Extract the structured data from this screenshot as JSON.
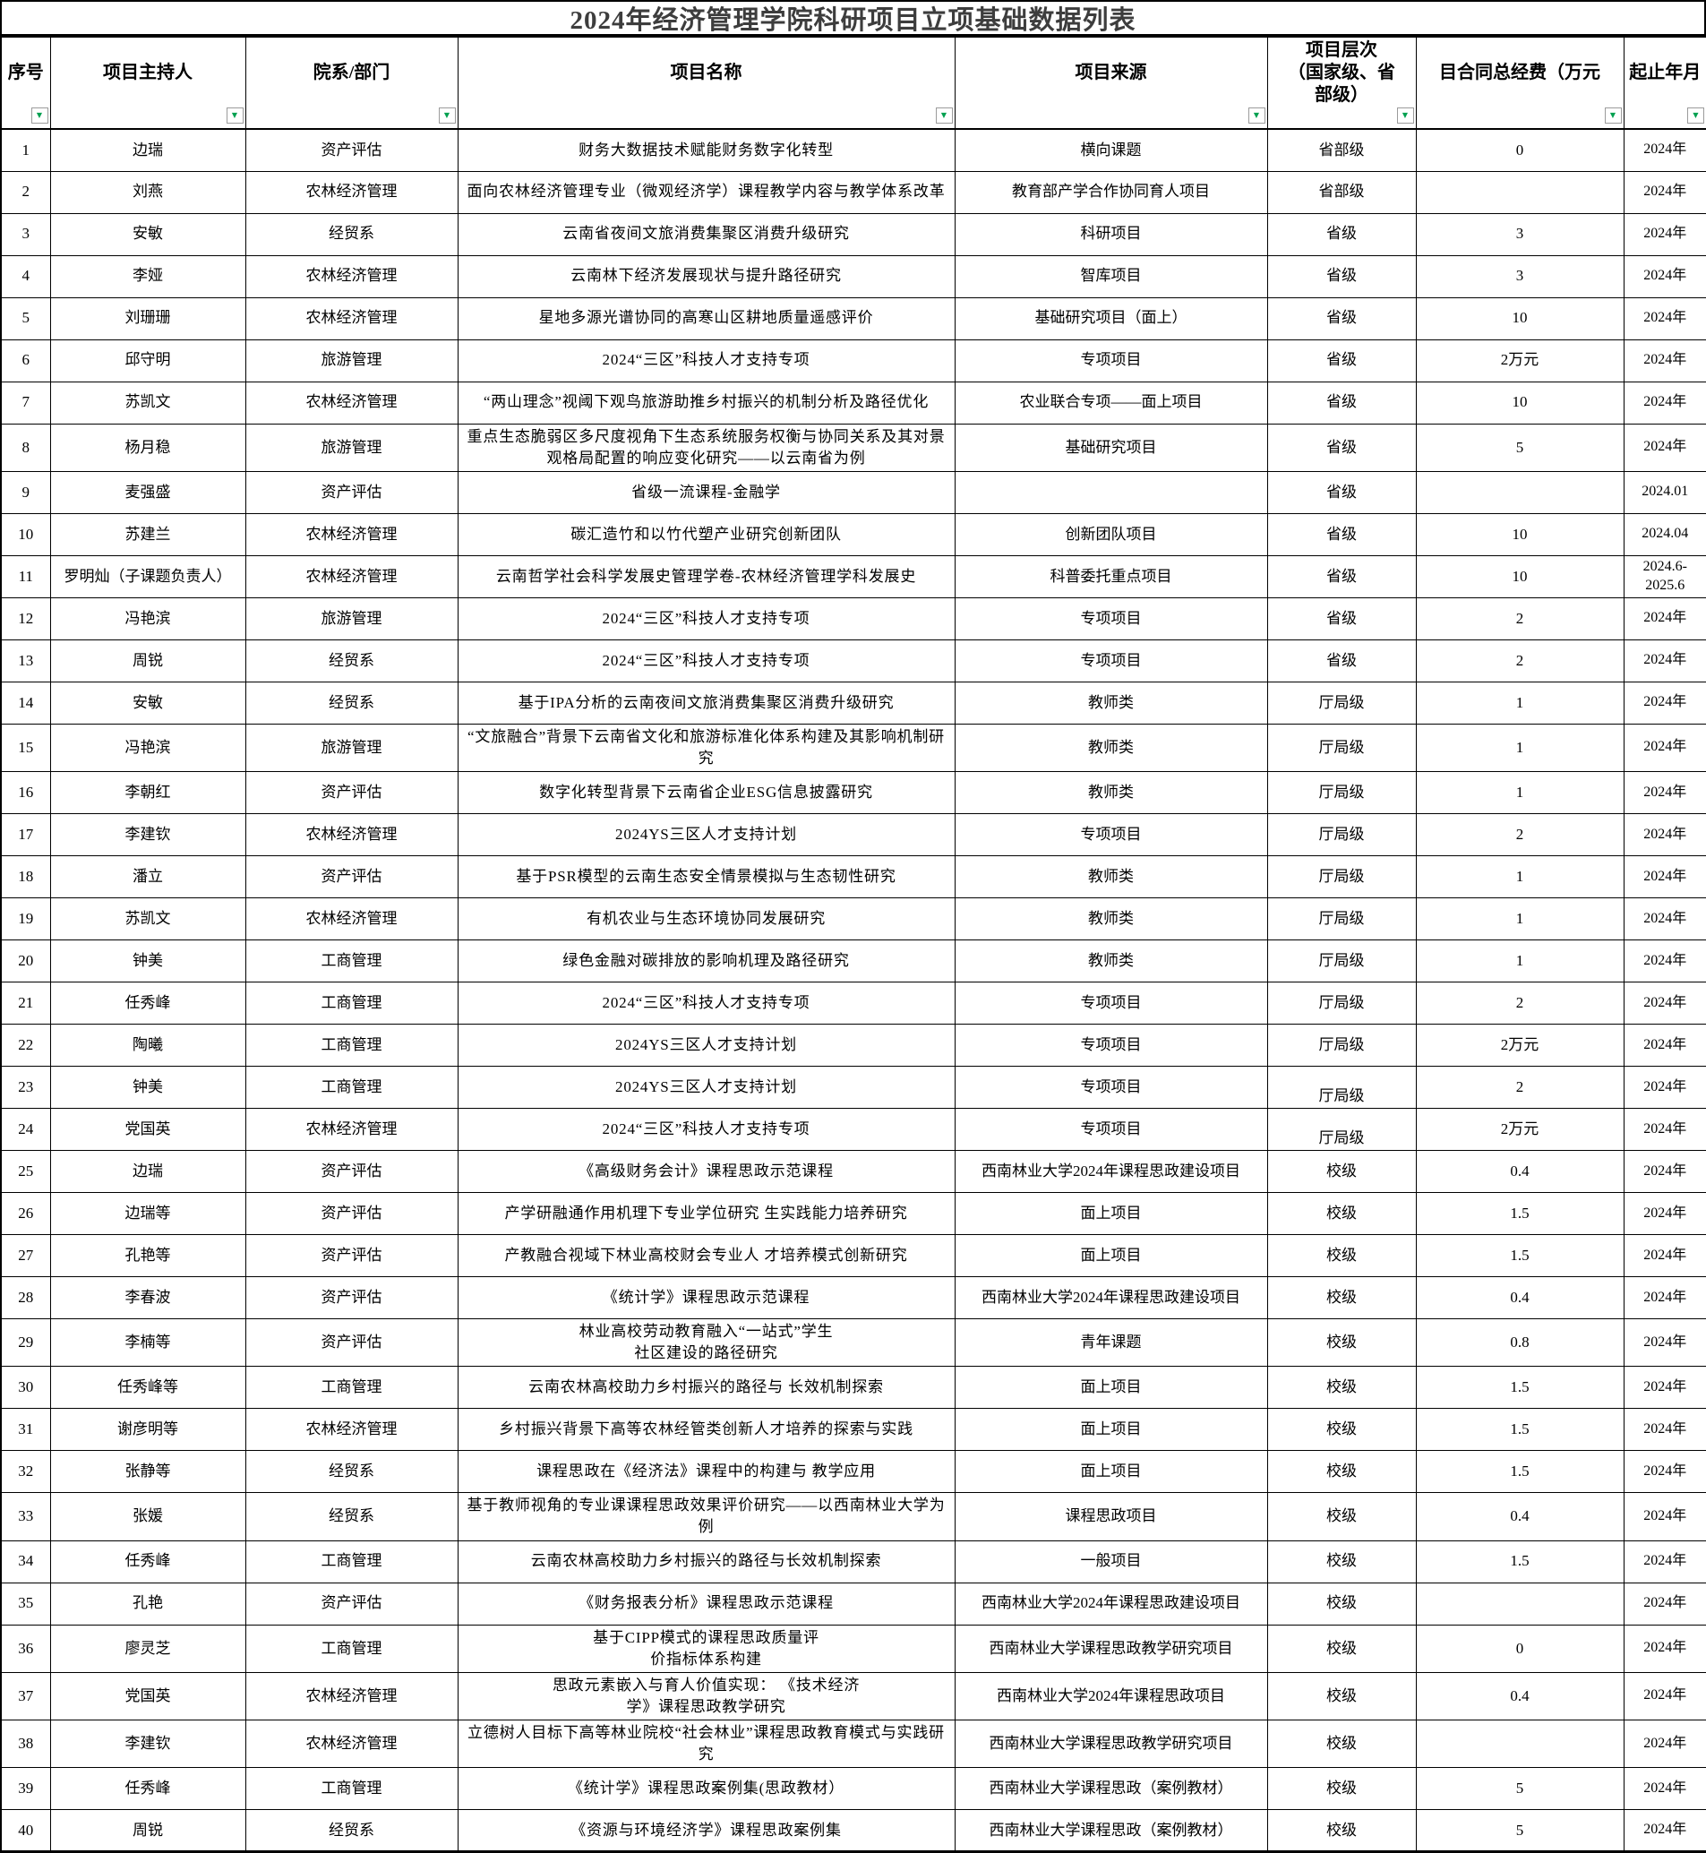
{
  "title": "2024年经济管理学院科研项目立项基础数据列表",
  "filter_icon": {
    "glyph": "▼",
    "color": "#00A050"
  },
  "columns": [
    {
      "key": "no",
      "label": "序号"
    },
    {
      "key": "leader",
      "label": "项目主持人"
    },
    {
      "key": "dept",
      "label": "院系/部门"
    },
    {
      "key": "name",
      "label": "项目名称"
    },
    {
      "key": "source",
      "label": "项目来源"
    },
    {
      "key": "level",
      "label": "项目层次\n（国家级、省\n部级）"
    },
    {
      "key": "fund",
      "label": "目合同总经费（万元"
    },
    {
      "key": "duration",
      "label": "起止年月"
    }
  ],
  "rows": [
    {
      "no": "1",
      "leader": "边瑞",
      "dept": "资产评估",
      "name": "财务大数据技术赋能财务数字化转型",
      "source": "横向课题",
      "level": "省部级",
      "fund": "0",
      "duration": "2024年"
    },
    {
      "no": "2",
      "leader": "刘燕",
      "dept": "农林经济管理",
      "name": "面向农林经济管理专业（微观经济学）课程教学内容与教学体系改革",
      "source": "教育部产学合作协同育人项目",
      "level": "省部级",
      "fund": "",
      "duration": "2024年"
    },
    {
      "no": "3",
      "leader": "安敏",
      "dept": "经贸系",
      "name": "云南省夜间文旅消费集聚区消费升级研究",
      "source": "科研项目",
      "level": "省级",
      "fund": "3",
      "duration": "2024年"
    },
    {
      "no": "4",
      "leader": "李娅",
      "dept": "农林经济管理",
      "name": "云南林下经济发展现状与提升路径研究",
      "source": "智库项目",
      "level": "省级",
      "fund": "3",
      "duration": "2024年"
    },
    {
      "no": "5",
      "leader": "刘珊珊",
      "dept": "农林经济管理",
      "name": "星地多源光谱协同的高寒山区耕地质量遥感评价",
      "source": "基础研究项目（面上）",
      "level": "省级",
      "fund": "10",
      "duration": "2024年"
    },
    {
      "no": "6",
      "leader": "邱守明",
      "dept": "旅游管理",
      "name": "2024“三区”科技人才支持专项",
      "source": "专项项目",
      "level": "省级",
      "fund": "2万元",
      "duration": "2024年"
    },
    {
      "no": "7",
      "leader": "苏凯文",
      "dept": "农林经济管理",
      "name": "“两山理念”视阈下观鸟旅游助推乡村振兴的机制分析及路径优化",
      "source": "农业联合专项——面上项目",
      "level": "省级",
      "fund": "10",
      "duration": "2024年"
    },
    {
      "no": "8",
      "leader": "杨月稳",
      "dept": "旅游管理",
      "name": "重点生态脆弱区多尺度视角下生态系统服务权衡与协同关系及其对景观格局配置的响应变化研究——以云南省为例",
      "source": "基础研究项目",
      "level": "省级",
      "fund": "5",
      "duration": "2024年"
    },
    {
      "no": "9",
      "leader": "麦强盛",
      "dept": "资产评估",
      "name": "省级一流课程-金融学",
      "source": "",
      "level": "省级",
      "fund": "",
      "duration": "2024.01"
    },
    {
      "no": "10",
      "leader": "苏建兰",
      "dept": "农林经济管理",
      "name": "碳汇造竹和以竹代塑产业研究创新团队",
      "source": "创新团队项目",
      "level": "省级",
      "fund": "10",
      "duration": "2024.04"
    },
    {
      "no": "11",
      "leader": "罗明灿（子课题负责人）",
      "dept": "农林经济管理",
      "name": "云南哲学社会科学发展史管理学卷-农林经济管理学科发展史",
      "source": "科普委托重点项目",
      "level": "省级",
      "fund": "10",
      "duration": "2024.6-\n2025.6"
    },
    {
      "no": "12",
      "leader": "冯艳滨",
      "dept": "旅游管理",
      "name": "2024“三区”科技人才支持专项",
      "source": "专项项目",
      "level": "省级",
      "fund": "2",
      "duration": "2024年"
    },
    {
      "no": "13",
      "leader": "周锐",
      "dept": "经贸系",
      "name": "2024“三区”科技人才支持专项",
      "source": "专项项目",
      "level": "省级",
      "fund": "2",
      "duration": "2024年"
    },
    {
      "no": "14",
      "leader": "安敏",
      "dept": "经贸系",
      "name": "基于IPA分析的云南夜间文旅消费集聚区消费升级研究",
      "source": "教师类",
      "level": "厅局级",
      "fund": "1",
      "duration": "2024年"
    },
    {
      "no": "15",
      "leader": "冯艳滨",
      "dept": "旅游管理",
      "name": "“文旅融合”背景下云南省文化和旅游标准化体系构建及其影响机制研究",
      "source": "教师类",
      "level": "厅局级",
      "fund": "1",
      "duration": "2024年"
    },
    {
      "no": "16",
      "leader": "李朝红",
      "dept": "资产评估",
      "name": "数字化转型背景下云南省企业ESG信息披露研究",
      "source": "教师类",
      "level": "厅局级",
      "fund": "1",
      "duration": "2024年"
    },
    {
      "no": "17",
      "leader": "李建钦",
      "dept": "农林经济管理",
      "name": "2024YS三区人才支持计划",
      "source": "专项项目",
      "level": "厅局级",
      "fund": "2",
      "duration": "2024年"
    },
    {
      "no": "18",
      "leader": "潘立",
      "dept": "资产评估",
      "name": "基于PSR模型的云南生态安全情景模拟与生态韧性研究",
      "source": "教师类",
      "level": "厅局级",
      "fund": "1",
      "duration": "2024年"
    },
    {
      "no": "19",
      "leader": "苏凯文",
      "dept": "农林经济管理",
      "name": "有机农业与生态环境协同发展研究",
      "source": "教师类",
      "level": "厅局级",
      "fund": "1",
      "duration": "2024年"
    },
    {
      "no": "20",
      "leader": "钟美",
      "dept": "工商管理",
      "name": "绿色金融对碳排放的影响机理及路径研究",
      "source": "教师类",
      "level": "厅局级",
      "fund": "1",
      "duration": "2024年"
    },
    {
      "no": "21",
      "leader": "任秀峰",
      "dept": "工商管理",
      "name": "2024“三区”科技人才支持专项",
      "source": "专项项目",
      "level": "厅局级",
      "fund": "2",
      "duration": "2024年"
    },
    {
      "no": "22",
      "leader": "陶曦",
      "dept": "工商管理",
      "name": "2024YS三区人才支持计划",
      "source": "专项项目",
      "level": "厅局级",
      "fund": "2万元",
      "duration": "2024年"
    },
    {
      "no": "23",
      "leader": "钟美",
      "dept": "工商管理",
      "name": "2024YS三区人才支持计划",
      "source": "专项项目",
      "level": "厅局级",
      "fund": "2",
      "duration": "2024年",
      "level_bottom": true
    },
    {
      "no": "24",
      "leader": "党国英",
      "dept": "农林经济管理",
      "name": "2024“三区”科技人才支持专项",
      "source": "专项项目",
      "level": "厅局级",
      "fund": "2万元",
      "duration": "2024年",
      "level_bottom": true
    },
    {
      "no": "25",
      "leader": "边瑞",
      "dept": "资产评估",
      "name": "《高级财务会计》课程思政示范课程",
      "source": "西南林业大学2024年课程思政建设项目",
      "level": "校级",
      "fund": "0.4",
      "duration": "2024年"
    },
    {
      "no": "26",
      "leader": "边瑞等",
      "dept": "资产评估",
      "name": "产学研融通作用机理下专业学位研究 生实践能力培养研究",
      "source": "面上项目",
      "level": "校级",
      "fund": "1.5",
      "duration": "2024年"
    },
    {
      "no": "27",
      "leader": "孔艳等",
      "dept": "资产评估",
      "name": "产教融合视域下林业高校财会专业人 才培养模式创新研究",
      "source": "面上项目",
      "level": "校级",
      "fund": "1.5",
      "duration": "2024年"
    },
    {
      "no": "28",
      "leader": "李春波",
      "dept": "资产评估",
      "name": "《统计学》课程思政示范课程",
      "source": "西南林业大学2024年课程思政建设项目",
      "level": "校级",
      "fund": "0.4",
      "duration": "2024年"
    },
    {
      "no": "29",
      "leader": "李楠等",
      "dept": "资产评估",
      "name": "林业高校劳动教育融入“一站式”学生\n社区建设的路径研究",
      "source": "青年课题",
      "level": "校级",
      "fund": "0.8",
      "duration": "2024年"
    },
    {
      "no": "30",
      "leader": "任秀峰等",
      "dept": "工商管理",
      "name": "云南农林高校助力乡村振兴的路径与 长效机制探索",
      "source": "面上项目",
      "level": "校级",
      "fund": "1.5",
      "duration": "2024年"
    },
    {
      "no": "31",
      "leader": "谢彦明等",
      "dept": "农林经济管理",
      "name": "乡村振兴背景下高等农林经管类创新人才培养的探索与实践",
      "source": "面上项目",
      "level": "校级",
      "fund": "1.5",
      "duration": "2024年"
    },
    {
      "no": "32",
      "leader": "张静等",
      "dept": "经贸系",
      "name": "课程思政在《经济法》课程中的构建与 教学应用",
      "source": "面上项目",
      "level": "校级",
      "fund": "1.5",
      "duration": "2024年"
    },
    {
      "no": "33",
      "leader": "张媛",
      "dept": "经贸系",
      "name": "基于教师视角的专业课课程思政效果评价研究——以西南林业大学为例",
      "source": "课程思政项目",
      "level": "校级",
      "fund": "0.4",
      "duration": "2024年"
    },
    {
      "no": "34",
      "leader": "任秀峰",
      "dept": "工商管理",
      "name": "云南农林高校助力乡村振兴的路径与长效机制探索",
      "source": "一般项目",
      "level": "校级",
      "fund": "1.5",
      "duration": "2024年"
    },
    {
      "no": "35",
      "leader": "孔艳",
      "dept": "资产评估",
      "name": "《财务报表分析》课程思政示范课程",
      "source": "西南林业大学2024年课程思政建设项目",
      "level": "校级",
      "fund": "",
      "duration": "2024年"
    },
    {
      "no": "36",
      "leader": "廖灵芝",
      "dept": "工商管理",
      "name": "基于CIPP模式的课程思政质量评\n价指标体系构建",
      "source": "西南林业大学课程思政教学研究项目",
      "level": "校级",
      "fund": "0",
      "duration": "2024年"
    },
    {
      "no": "37",
      "leader": "党国英",
      "dept": "农林经济管理",
      "name": "思政元素嵌入与育人价值实现： 《技术经济\n学》课程思政教学研究",
      "source": "西南林业大学2024年课程思政项目",
      "level": "校级",
      "fund": "0.4",
      "duration": "2024年"
    },
    {
      "no": "38",
      "leader": "李建钦",
      "dept": "农林经济管理",
      "name": "立德树人目标下高等林业院校“社会林业”课程思政教育模式与实践研究",
      "source": "西南林业大学课程思政教学研究项目",
      "level": "校级",
      "fund": "",
      "duration": "2024年"
    },
    {
      "no": "39",
      "leader": "任秀峰",
      "dept": "工商管理",
      "name": "《统计学》课程思政案例集(思政教材）",
      "source": "西南林业大学课程思政（案例教材）",
      "level": "校级",
      "fund": "5",
      "duration": "2024年"
    },
    {
      "no": "40",
      "leader": "周锐",
      "dept": "经贸系",
      "name": "《资源与环境经济学》课程思政案例集",
      "source": "西南林业大学课程思政（案例教材）",
      "level": "校级",
      "fund": "5",
      "duration": "2024年"
    }
  ]
}
